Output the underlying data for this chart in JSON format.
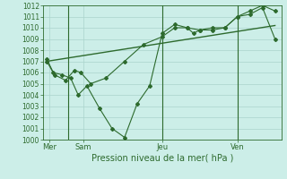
{
  "xlabel": "Pression niveau de la mer( hPa )",
  "bg_color": "#cceee8",
  "grid_color": "#aad4cc",
  "line_color": "#2d6a2d",
  "ylim": [
    1000,
    1012
  ],
  "yticks": [
    1000,
    1001,
    1002,
    1003,
    1004,
    1005,
    1006,
    1007,
    1008,
    1009,
    1010,
    1011,
    1012
  ],
  "xlim": [
    0,
    19
  ],
  "day_labels": [
    "Mer",
    "Sam",
    "Jeu",
    "Ven"
  ],
  "day_positions": [
    0.5,
    3.2,
    9.5,
    15.5
  ],
  "vline_positions": [
    2.0,
    9.5,
    15.5
  ],
  "line1_x": [
    0.3,
    0.8,
    1.5,
    2.2,
    2.8,
    3.5,
    4.5,
    5.5,
    6.5,
    7.5,
    8.5,
    9.5,
    10.5,
    11.5,
    12.0,
    12.5,
    13.5,
    14.5,
    15.5,
    16.5,
    17.5,
    18.5
  ],
  "line1_y": [
    1007.0,
    1006.0,
    1005.8,
    1005.5,
    1004.0,
    1004.8,
    1002.8,
    1001.0,
    1000.2,
    1003.2,
    1004.8,
    1009.5,
    1010.3,
    1010.0,
    1009.5,
    1009.8,
    1010.0,
    1010.0,
    1011.0,
    1011.5,
    1012.0,
    1011.5
  ],
  "line2_x": [
    0.3,
    0.9,
    1.8,
    2.5,
    3.0,
    3.8,
    5.0,
    6.5,
    8.0,
    9.5,
    10.5,
    11.5,
    12.5,
    13.5,
    14.5,
    15.5,
    16.5,
    17.5,
    18.5
  ],
  "line2_y": [
    1007.2,
    1005.8,
    1005.3,
    1006.2,
    1006.0,
    1005.0,
    1005.5,
    1007.0,
    1008.5,
    1009.2,
    1010.0,
    1010.0,
    1009.8,
    1009.8,
    1010.0,
    1011.0,
    1011.2,
    1011.8,
    1009.0
  ],
  "line3_x": [
    0.3,
    18.5
  ],
  "line3_y": [
    1007.0,
    1010.2
  ],
  "figsize": [
    3.2,
    2.0
  ],
  "dpi": 100
}
